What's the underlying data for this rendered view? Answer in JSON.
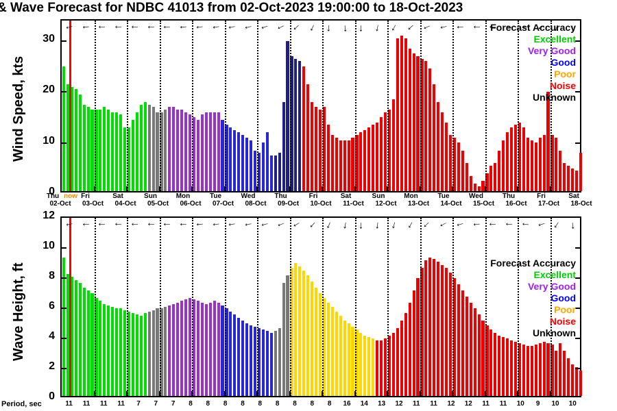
{
  "title": "& Wave Forecast for NDBC 41013 from 02-Oct-2023 19:00:00 to 18-Oct-2023",
  "now_label": "now",
  "legend": {
    "title": "Forecast Accuracy",
    "entries": [
      {
        "label": "Excellent",
        "color": "#00CC00"
      },
      {
        "label": "Very Good",
        "color": "#A020F0"
      },
      {
        "label": "Good",
        "color": "#0000FF"
      },
      {
        "label": "Poor",
        "color": "#FFA500"
      },
      {
        "label": "Noise",
        "color": "#FF0000"
      },
      {
        "label": "Unknown",
        "color": "#000000"
      }
    ]
  },
  "axes": {
    "wind": {
      "label": "Wind Speed, kts",
      "ticks": [
        0,
        10,
        20,
        30
      ],
      "ymax": 34
    },
    "wave": {
      "label": "Wave Height, ft",
      "ticks": [
        0,
        2,
        4,
        6,
        8,
        10,
        12
      ],
      "ymax": 12
    }
  },
  "x_axis": {
    "day_names": [
      "Thu",
      "Fri",
      "Sat",
      "Sun",
      "Mon",
      "Tue",
      "Wed",
      "Thu",
      "Fri",
      "Sat",
      "Sun",
      "Mon",
      "Tue",
      "Wed",
      "Thu",
      "Fri",
      "Sat"
    ],
    "dates": [
      "02-Oct",
      "03-Oct",
      "04-Oct",
      "05-Oct",
      "06-Oct",
      "07-Oct",
      "08-Oct",
      "09-Oct",
      "10-Oct",
      "11-Oct",
      "12-Oct",
      "13-Oct",
      "14-Oct",
      "15-Oct",
      "16-Oct",
      "17-Oct",
      "18-Oct"
    ]
  },
  "period": {
    "label": "Period, sec",
    "values": [
      11,
      11,
      11,
      11,
      7,
      7,
      7,
      8,
      8,
      8,
      8,
      8,
      8,
      8,
      8,
      8,
      16,
      14,
      13,
      12,
      11,
      11,
      12,
      12,
      11,
      11,
      10,
      9,
      10,
      10
    ]
  },
  "colors": {
    "excellent": "#00DD00",
    "unknown": "#787878",
    "verygood": "#9B30D0",
    "good": "#2727D8",
    "good_dark": "#1F1F8A",
    "poor": "#FFD700",
    "noise": "#EE0000",
    "now_line": "#FF0000"
  },
  "chart_data": [
    {
      "type": "bar",
      "name": "wind_speed",
      "ylabel": "Wind Speed, kts",
      "ylim": [
        0,
        34
      ],
      "x_start": "02-Oct-2023 19:00",
      "x_end": "18-Oct-2023 19:00",
      "interval_hours": 3,
      "values": [
        24.5,
        21,
        20.5,
        20,
        19,
        17,
        16.5,
        16,
        16,
        16,
        16.5,
        16,
        15.5,
        15.5,
        15,
        12.5,
        12.5,
        14,
        15.5,
        17,
        17.5,
        17,
        16.5,
        15.5,
        15.5,
        16,
        16.5,
        16.5,
        16,
        16,
        15.5,
        15,
        14.5,
        14,
        15,
        15.5,
        15.5,
        15.5,
        15.5,
        14,
        13,
        12.5,
        12,
        11.5,
        11,
        10.5,
        10,
        8,
        7.5,
        9.5,
        11.5,
        7,
        7,
        7.5,
        17.5,
        29.5,
        26.5,
        26,
        25.5,
        24.5,
        21,
        17.5,
        16.5,
        16,
        16.5,
        13,
        11,
        10.5,
        10,
        10,
        10,
        10.5,
        11,
        11.5,
        12,
        12.5,
        13,
        13.5,
        14.5,
        15.5,
        16,
        18,
        30,
        30.5,
        30,
        28,
        27,
        26.5,
        26,
        25.5,
        24,
        21,
        17.5,
        15.5,
        13.5,
        11,
        10.5,
        9.5,
        8,
        5.5,
        3,
        1.5,
        1,
        2,
        3.5,
        5,
        5.5,
        8,
        10,
        11.5,
        12.5,
        13,
        13.5,
        12.5,
        10.5,
        10,
        9.5,
        10.5,
        11,
        19.5,
        11,
        10.5,
        8,
        5.5,
        5,
        4.5,
        4,
        7.5
      ],
      "accuracy_segments": [
        {
          "key": "excellent",
          "count": 21
        },
        {
          "key": "unknown",
          "count": 5
        },
        {
          "key": "verygood",
          "count": 13
        },
        {
          "key": "good",
          "count": 13
        },
        {
          "key": "good_dark",
          "count": 7
        },
        {
          "key": "noise",
          "count": 69
        }
      ]
    },
    {
      "type": "bar",
      "name": "wave_height",
      "ylabel": "Wave Height, ft",
      "ylim": [
        0,
        12
      ],
      "x_start": "02-Oct-2023 19:00",
      "x_end": "18-Oct-2023 19:00",
      "interval_hours": 3,
      "values": [
        9.2,
        8.1,
        7.9,
        7.7,
        7.5,
        7.2,
        7.0,
        6.8,
        6.5,
        6.3,
        6.1,
        6.0,
        5.9,
        5.8,
        5.8,
        5.7,
        5.6,
        5.5,
        5.4,
        5.3,
        5.5,
        5.6,
        5.7,
        5.8,
        5.8,
        5.9,
        6.0,
        6.1,
        6.2,
        6.3,
        6.4,
        6.5,
        6.4,
        6.3,
        6.2,
        6.1,
        6.2,
        6.3,
        6.2,
        6.0,
        5.8,
        5.6,
        5.4,
        5.2,
        5.0,
        4.8,
        4.7,
        4.6,
        4.5,
        4.4,
        4.3,
        4.2,
        4.3,
        4.5,
        7.5,
        8.0,
        8.5,
        8.8,
        8.6,
        8.3,
        8.0,
        7.6,
        7.2,
        6.8,
        6.5,
        6.2,
        5.9,
        5.6,
        5.3,
        5.0,
        4.8,
        4.6,
        4.4,
        4.2,
        4.0,
        3.9,
        3.8,
        3.7,
        3.7,
        3.8,
        4.0,
        4.2,
        4.5,
        5.0,
        5.5,
        6.2,
        7.0,
        7.8,
        8.5,
        9.0,
        9.2,
        9.1,
        8.9,
        8.7,
        8.5,
        8.2,
        7.8,
        7.4,
        7.0,
        6.6,
        6.2,
        5.8,
        5.4,
        5.0,
        4.7,
        4.4,
        4.2,
        4.0,
        3.9,
        3.8,
        3.7,
        3.6,
        3.5,
        3.4,
        3.3,
        3.3,
        3.4,
        3.5,
        3.6,
        3.5,
        3.4,
        3.0,
        3.5,
        3.0,
        2.5,
        2.1,
        1.9,
        1.7
      ],
      "accuracy_segments": [
        {
          "key": "excellent",
          "count": 21
        },
        {
          "key": "unknown",
          "count": 5
        },
        {
          "key": "verygood",
          "count": 13
        },
        {
          "key": "good",
          "count": 13
        },
        {
          "key": "unknown",
          "count": 4
        },
        {
          "key": "poor",
          "count": 21
        },
        {
          "key": "noise",
          "count": 51
        }
      ]
    }
  ],
  "arrows": {
    "wind": [
      165,
      175,
      180,
      183,
      181,
      179,
      177,
      175,
      173,
      171,
      169,
      166,
      162,
      154,
      138,
      115,
      95,
      85,
      92,
      102,
      118,
      138,
      156,
      168,
      176,
      181,
      185,
      188,
      181,
      150,
      110,
      75
    ],
    "wave": [
      170,
      178,
      182,
      184,
      183,
      181,
      179,
      177,
      175,
      173,
      171,
      169,
      166,
      160,
      149,
      133,
      114,
      99,
      92,
      97,
      106,
      119,
      136,
      152,
      165,
      174,
      180,
      184,
      186,
      164,
      124,
      85
    ]
  }
}
